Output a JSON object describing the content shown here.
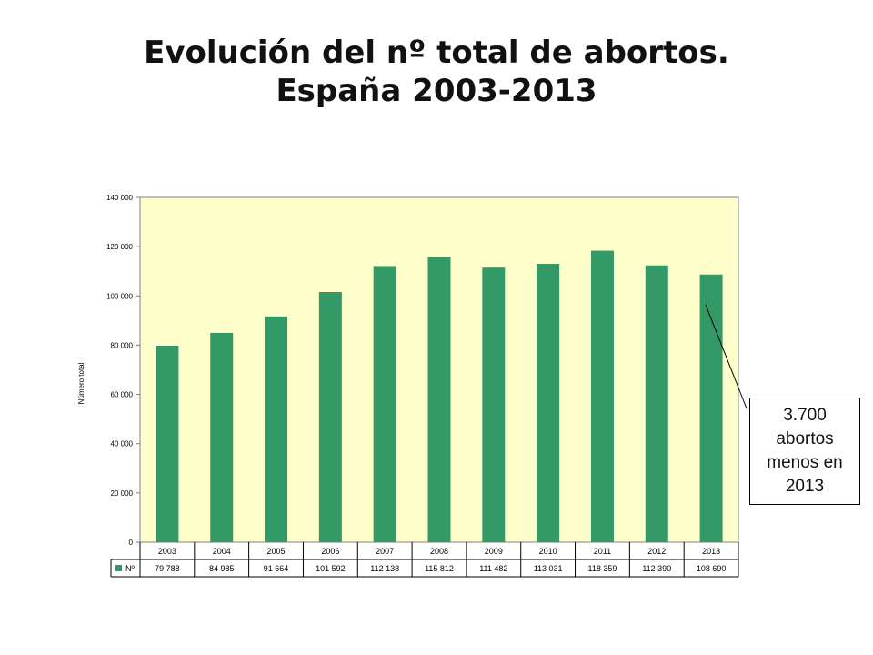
{
  "title": {
    "line1": "Evolución del nº total de abortos.",
    "line2": "España 2003-2013"
  },
  "callout": {
    "text": "3.700 abortos menos en 2013"
  },
  "colors": {
    "bar": "#339966",
    "plot_background": "#FFFFCC",
    "axis": "#808080"
  },
  "chart_data": {
    "type": "bar",
    "title": "",
    "xlabel": "",
    "ylabel": "Número total",
    "categories": [
      "2003",
      "2004",
      "2005",
      "2006",
      "2007",
      "2008",
      "2009",
      "2010",
      "2011",
      "2012",
      "2013"
    ],
    "series": [
      {
        "name": "Nº",
        "values": [
          79788,
          84985,
          91664,
          101592,
          112138,
          115812,
          111482,
          113031,
          118359,
          112390,
          108690
        ],
        "labels": [
          "79 788",
          "84 985",
          "91 664",
          "101 592",
          "112 138",
          "115 812",
          "111 482",
          "113 031",
          "118 359",
          "112 390",
          "108 690"
        ]
      }
    ],
    "ylim": [
      0,
      140000
    ],
    "yticks": [
      0,
      20000,
      40000,
      60000,
      80000,
      100000,
      120000,
      140000
    ],
    "ytick_labels": [
      "0",
      "20 000",
      "40 000",
      "60 000",
      "80 000",
      "100 000",
      "120 000",
      "140 000"
    ],
    "grid": false,
    "data_table": true
  }
}
